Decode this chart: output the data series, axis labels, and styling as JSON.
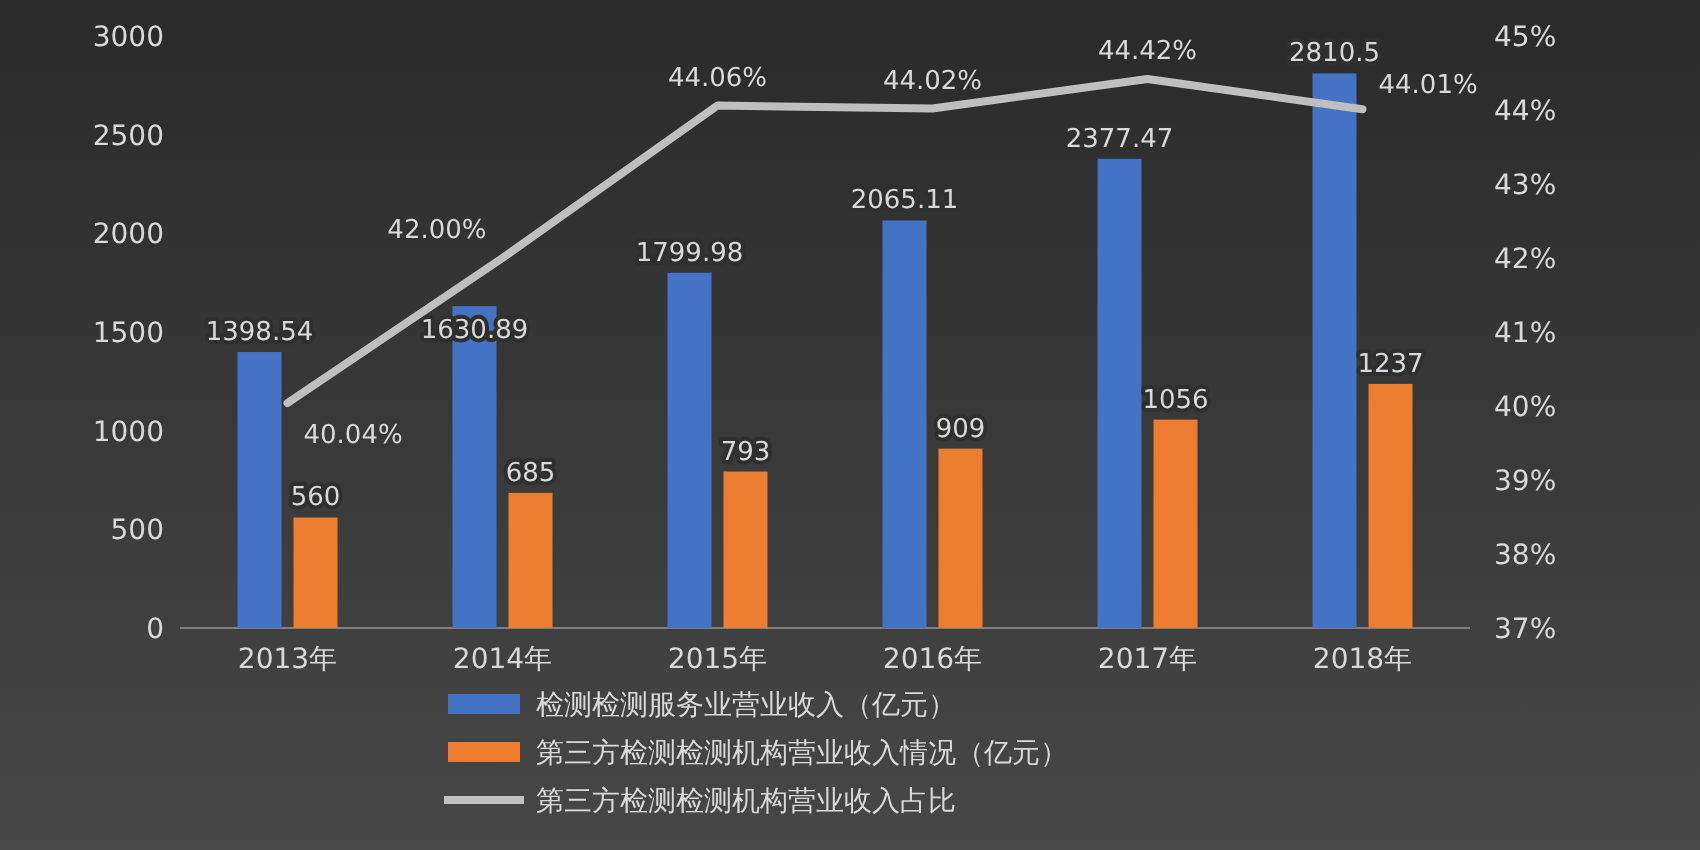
{
  "chart_data": {
    "type": "bar",
    "categories": [
      "2013年",
      "2014年",
      "2015年",
      "2016年",
      "2017年",
      "2018年"
    ],
    "series": [
      {
        "name": "检测检测服务业营业收入（亿元）",
        "color": "#4472c4",
        "values": [
          1398.54,
          1630.89,
          1799.98,
          2065.11,
          2377.47,
          2810.5
        ]
      },
      {
        "name": "第三方检测检测机构营业收入情况（亿元）",
        "color": "#ed7d31",
        "values": [
          560,
          685,
          793,
          909,
          1056,
          1237
        ]
      },
      {
        "name": "第三方检测检测机构营业收入占比",
        "type": "line",
        "axis": "y2",
        "color": "#bfbfbf",
        "values": [
          40.04,
          42.0,
          44.06,
          44.02,
          44.42,
          44.01
        ],
        "value_labels": [
          "40.04%",
          "42.00%",
          "44.06%",
          "44.02%",
          "44.42%",
          "44.01%"
        ]
      }
    ],
    "ylim": [
      0,
      3000
    ],
    "yticks": [
      0,
      500,
      1000,
      1500,
      2000,
      2500,
      3000
    ],
    "y2lim": [
      37,
      45
    ],
    "y2ticks": [
      {
        "value": 37,
        "label": "37%"
      },
      {
        "value": 38,
        "label": "38%"
      },
      {
        "value": 39,
        "label": "39%"
      },
      {
        "value": 40,
        "label": "40%"
      },
      {
        "value": 41,
        "label": "41%"
      },
      {
        "value": 42,
        "label": "42%"
      },
      {
        "value": 43,
        "label": "43%"
      },
      {
        "value": 44,
        "label": "44%"
      },
      {
        "value": 45,
        "label": "45%"
      }
    ],
    "data_labels": true,
    "legend": "bottom"
  }
}
